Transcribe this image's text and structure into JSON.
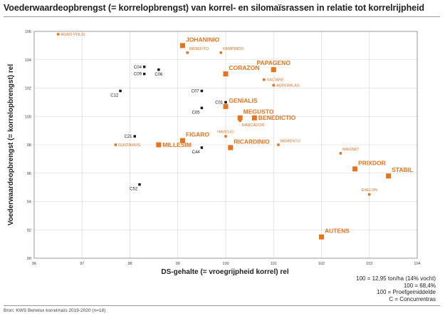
{
  "title": "Voederwaardeopbrengst (= korrelopbrengst) van korrel- en silomaïsrassen in relatie tot korrelrijpheid",
  "notes": [
    "100 = 12,95 ton/ha (14% vocht)",
    "100 = 68,4%",
    "100 = Proefgemiddelde",
    "C = Concurrentras"
  ],
  "source": "Bron: KWS Benelux korrelmaïs 2019-2020 (n=18)",
  "colors": {
    "orange": "#e8731f",
    "black": "#1a1a1a",
    "grid": "#d4d4d4",
    "axis": "#888888"
  },
  "chart_data": {
    "type": "scatter",
    "xlabel": "DS-gehalte (= vroegrijpheid korrel) rel",
    "ylabel": "Voederwaardeopbrengst (= korrelopbrengst) rel",
    "xlim": [
      96,
      104
    ],
    "ylim": [
      90,
      106
    ],
    "xticks": [
      96,
      97,
      98,
      99,
      100,
      101,
      102,
      103,
      104
    ],
    "yticks": [
      90,
      92,
      94,
      96,
      98,
      100,
      102,
      104,
      106
    ],
    "grid": true,
    "points": [
      {
        "label": "AGRO POLIS",
        "x": 96.5,
        "y": 105.8,
        "group": "orange-small",
        "pos": "right"
      },
      {
        "label": "JOHANINIO",
        "x": 99.1,
        "y": 105.0,
        "group": "orange-large",
        "pos": "above-right"
      },
      {
        "label": "BENEFITO",
        "x": 99.2,
        "y": 104.5,
        "group": "orange-small",
        "pos": "above-right"
      },
      {
        "label": "KAMPINOS",
        "x": 99.9,
        "y": 104.5,
        "group": "orange-small",
        "pos": "above-right"
      },
      {
        "label": "C04",
        "x": 98.3,
        "y": 103.5,
        "group": "competitor",
        "pos": "left"
      },
      {
        "label": "C06",
        "x": 98.6,
        "y": 103.3,
        "group": "competitor",
        "pos": "below"
      },
      {
        "label": "C09",
        "x": 98.3,
        "y": 103.0,
        "group": "competitor",
        "pos": "left"
      },
      {
        "label": "PAPAGENO",
        "x": 101.0,
        "y": 103.3,
        "group": "orange-large",
        "pos": "above"
      },
      {
        "label": "CORAZON",
        "x": 100.0,
        "y": 103.0,
        "group": "orange-large",
        "pos": "above-right"
      },
      {
        "label": "SALTARE",
        "x": 100.8,
        "y": 102.6,
        "group": "orange-small",
        "pos": "right"
      },
      {
        "label": "AGROMILAS",
        "x": 101.0,
        "y": 102.2,
        "group": "orange-small",
        "pos": "right"
      },
      {
        "label": "C12",
        "x": 97.8,
        "y": 101.8,
        "group": "competitor",
        "pos": "below-left"
      },
      {
        "label": "C07",
        "x": 99.5,
        "y": 101.8,
        "group": "competitor",
        "pos": "left"
      },
      {
        "label": "C01",
        "x": 100.0,
        "y": 101.0,
        "group": "competitor",
        "pos": "left"
      },
      {
        "label": "GENIALIS",
        "x": 100.0,
        "y": 100.7,
        "group": "orange-large",
        "pos": "above-right"
      },
      {
        "label": "C05",
        "x": 99.5,
        "y": 100.6,
        "group": "competitor",
        "pos": "below-left"
      },
      {
        "label": "MEGUSTO",
        "x": 100.3,
        "y": 99.9,
        "group": "orange-large",
        "pos": "above-right"
      },
      {
        "label": "BENEDICTIO",
        "x": 100.6,
        "y": 99.9,
        "group": "orange-large",
        "pos": "right"
      },
      {
        "label": "RANCADOR",
        "x": 100.3,
        "y": 99.7,
        "group": "orange-small",
        "pos": "below-right"
      },
      {
        "label": "HAVELIO",
        "x": 100.0,
        "y": 98.6,
        "group": "orange-small",
        "pos": "above"
      },
      {
        "label": "FIGARO",
        "x": 99.1,
        "y": 98.3,
        "group": "orange-large",
        "pos": "above-right"
      },
      {
        "label": "C21",
        "x": 98.1,
        "y": 98.6,
        "group": "competitor",
        "pos": "left"
      },
      {
        "label": "MEMENTO",
        "x": 101.1,
        "y": 98.0,
        "group": "orange-small",
        "pos": "above-right"
      },
      {
        "label": "RICARDINIO",
        "x": 100.1,
        "y": 97.8,
        "group": "orange-large",
        "pos": "above-right"
      },
      {
        "label": "GUSTAVIUS",
        "x": 97.7,
        "y": 98.0,
        "group": "orange-small",
        "pos": "right"
      },
      {
        "label": "MILLESIM",
        "x": 98.6,
        "y": 98.0,
        "group": "orange-large",
        "pos": "right"
      },
      {
        "label": "C44",
        "x": 99.5,
        "y": 97.8,
        "group": "competitor",
        "pos": "below-left"
      },
      {
        "label": "MAGNET",
        "x": 102.4,
        "y": 97.4,
        "group": "orange-small",
        "pos": "above-right"
      },
      {
        "label": "PRIXDOR",
        "x": 102.7,
        "y": 96.3,
        "group": "orange-large",
        "pos": "above-right"
      },
      {
        "label": "STABIL",
        "x": 103.4,
        "y": 95.8,
        "group": "orange-large",
        "pos": "above-right"
      },
      {
        "label": "EXELON",
        "x": 103.0,
        "y": 94.5,
        "group": "orange-small",
        "pos": "above"
      },
      {
        "label": "C52",
        "x": 98.2,
        "y": 95.2,
        "group": "competitor",
        "pos": "below-left"
      },
      {
        "label": "AUTENS",
        "x": 102.0,
        "y": 91.5,
        "group": "orange-large",
        "pos": "above-right"
      }
    ]
  }
}
